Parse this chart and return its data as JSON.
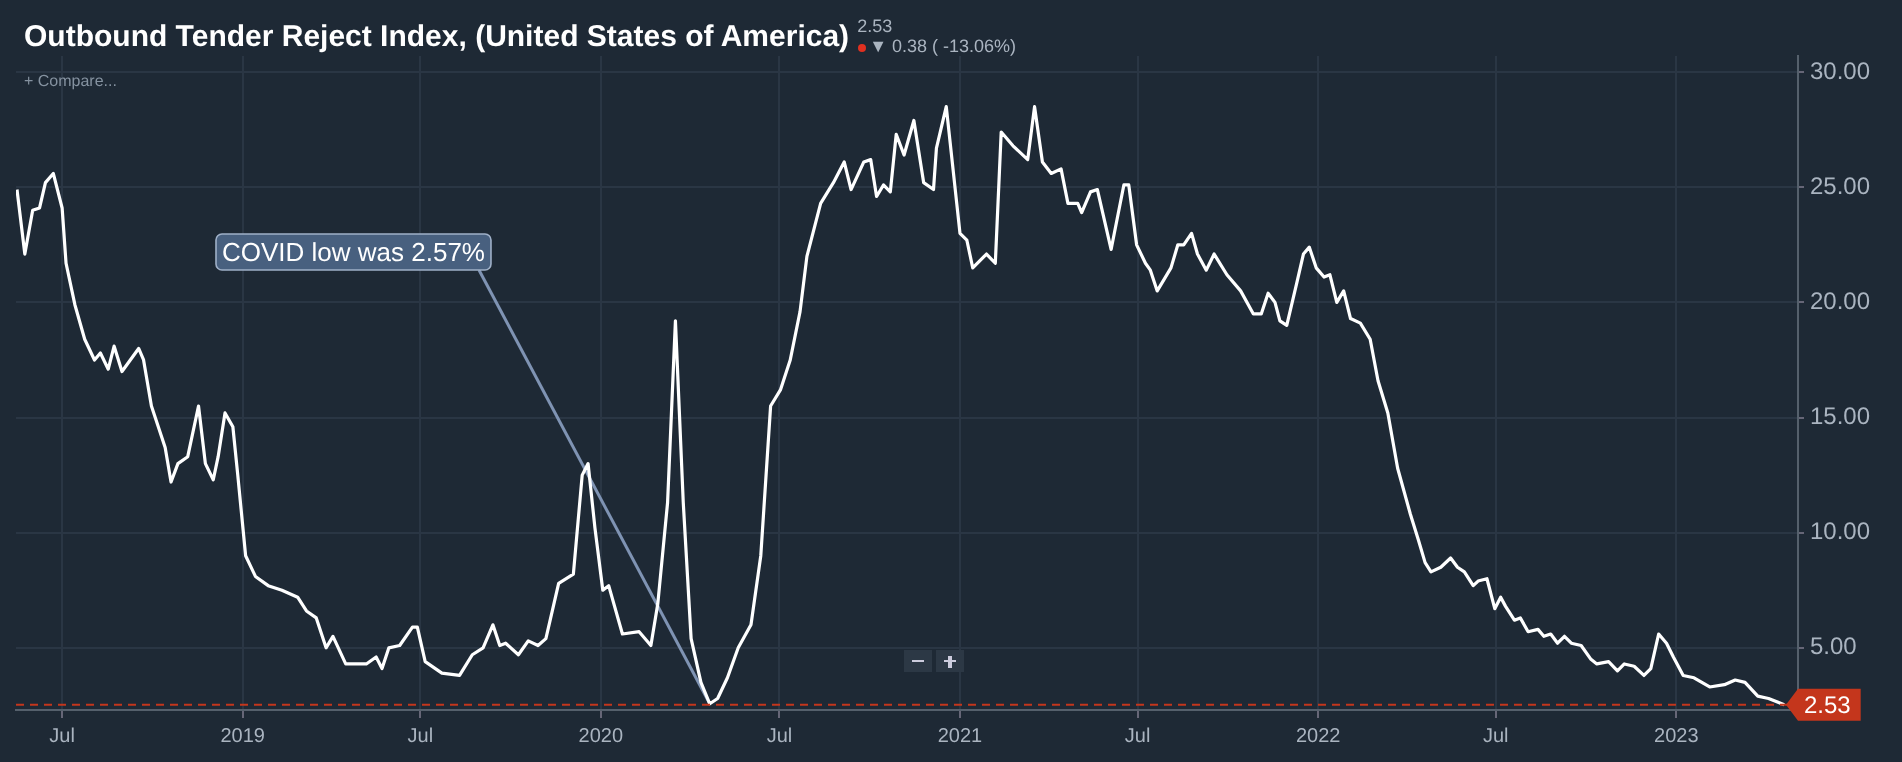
{
  "chart_data": {
    "type": "line",
    "title": "Outbound Tender Reject Index, (United States of America)",
    "subtitle": "2.53",
    "annotations": [
      "▼ 0.38 ( -13.06%)",
      "+ Compare...",
      {
        "text": "COVID low was 2.57%",
        "x": "2020-04-21",
        "y": 2.57
      }
    ],
    "x": [
      "2018-05-16",
      "2018-05-24",
      "2018-06-01",
      "2018-06-08",
      "2018-06-14",
      "2018-06-22",
      "2018-07-01",
      "2018-07-05",
      "2018-07-14",
      "2018-07-24",
      "2018-08-03",
      "2018-08-09",
      "2018-08-17",
      "2018-08-23",
      "2018-08-31",
      "2018-09-17",
      "2018-09-22",
      "2018-09-30",
      "2018-10-14",
      "2018-10-20",
      "2018-10-27",
      "2018-11-06",
      "2018-11-17",
      "2018-11-24",
      "2018-12-02",
      "2018-12-07",
      "2018-12-14",
      "2018-12-22",
      "2018-12-27",
      "2019-01-04",
      "2019-01-14",
      "2019-01-27",
      "2019-02-10",
      "2019-02-26",
      "2019-03-07",
      "2019-03-17",
      "2019-03-27",
      "2019-04-03",
      "2019-04-16",
      "2019-05-07",
      "2019-05-17",
      "2019-05-23",
      "2019-05-30",
      "2019-06-10",
      "2019-06-23",
      "2019-06-28",
      "2019-07-06",
      "2019-07-23",
      "2019-08-10",
      "2019-08-23",
      "2019-09-03",
      "2019-09-13",
      "2019-09-20",
      "2019-09-26",
      "2019-10-09",
      "2019-10-19",
      "2019-10-29",
      "2019-11-06",
      "2019-11-19",
      "2019-12-04",
      "2019-12-13",
      "2019-12-19",
      "2019-12-26",
      "2020-01-03",
      "2020-01-09",
      "2020-01-23",
      "2020-02-09",
      "2020-02-21",
      "2020-02-28",
      "2020-03-09",
      "2020-03-17",
      "2020-03-25",
      "2020-04-02",
      "2020-04-12",
      "2020-04-21",
      "2020-04-29",
      "2020-05-09",
      "2020-05-20",
      "2020-06-02",
      "2020-06-12",
      "2020-06-22",
      "2020-07-02",
      "2020-07-12",
      "2020-07-22",
      "2020-07-29",
      "2020-08-12",
      "2020-08-25",
      "2020-09-05",
      "2020-09-12",
      "2020-09-25",
      "2020-10-02",
      "2020-10-08",
      "2020-10-15",
      "2020-10-22",
      "2020-10-28",
      "2020-11-05",
      "2020-11-15",
      "2020-11-25",
      "2020-12-05",
      "2020-12-08",
      "2020-12-18",
      "2021-01-01",
      "2021-01-08",
      "2021-01-14",
      "2021-01-28",
      "2021-02-06",
      "2021-02-12",
      "2021-02-24",
      "2021-03-11",
      "2021-03-18",
      "2021-03-26",
      "2021-04-04",
      "2021-04-14",
      "2021-04-21",
      "2021-05-01",
      "2021-05-05",
      "2021-05-14",
      "2021-05-21",
      "2021-06-04",
      "2021-06-17",
      "2021-06-22",
      "2021-06-30",
      "2021-07-09",
      "2021-07-14",
      "2021-07-21",
      "2021-08-04",
      "2021-08-11",
      "2021-08-17",
      "2021-08-25",
      "2021-08-31",
      "2021-09-09",
      "2021-09-17",
      "2021-09-30",
      "2021-10-14",
      "2021-10-27",
      "2021-11-04",
      "2021-11-11",
      "2021-11-18",
      "2021-11-23",
      "2021-11-30",
      "2021-12-10",
      "2021-12-17",
      "2021-12-23",
      "2021-12-30",
      "2022-01-07",
      "2022-01-13",
      "2022-01-20",
      "2022-01-27",
      "2022-02-03",
      "2022-02-13",
      "2022-02-23",
      "2022-03-03",
      "2022-03-13",
      "2022-03-23",
      "2022-04-05",
      "2022-04-13",
      "2022-04-20",
      "2022-04-26",
      "2022-05-06",
      "2022-05-16",
      "2022-05-23",
      "2022-05-30",
      "2022-06-08",
      "2022-06-13",
      "2022-06-22",
      "2022-06-30",
      "2022-07-06",
      "2022-07-11",
      "2022-07-20",
      "2022-07-26",
      "2022-08-03",
      "2022-08-13",
      "2022-08-19",
      "2022-08-26",
      "2022-09-02",
      "2022-09-09",
      "2022-09-16",
      "2022-09-26",
      "2022-10-06",
      "2022-10-12",
      "2022-10-24",
      "2022-11-02",
      "2022-11-09",
      "2022-11-19",
      "2022-11-29",
      "2022-12-06",
      "2022-12-14",
      "2022-12-22",
      "2022-12-29",
      "2023-01-08",
      "2023-01-19",
      "2023-02-04",
      "2023-02-19",
      "2023-03-02",
      "2023-03-12",
      "2023-03-25",
      "2023-04-05",
      "2023-04-21"
    ],
    "series": [
      {
        "color": "#ffffff",
        "values": [
          24.9,
          22.1,
          24.0,
          24.1,
          25.2,
          25.6,
          24.1,
          21.7,
          19.9,
          18.4,
          17.5,
          17.8,
          17.1,
          18.1,
          17.0,
          18.0,
          17.5,
          15.5,
          13.7,
          12.2,
          13.0,
          13.3,
          15.5,
          13.0,
          12.3,
          13.3,
          15.2,
          14.6,
          12.5,
          9.0,
          8.1,
          7.7,
          7.5,
          7.2,
          6.6,
          6.3,
          5.0,
          5.5,
          4.3,
          4.3,
          4.6,
          4.1,
          5.0,
          5.1,
          5.9,
          5.9,
          4.4,
          3.9,
          3.8,
          4.7,
          5.0,
          6.0,
          5.1,
          5.2,
          4.7,
          5.3,
          5.1,
          5.4,
          7.8,
          8.2,
          12.5,
          13.0,
          10.2,
          7.5,
          7.7,
          5.6,
          5.7,
          5.1,
          6.9,
          11.3,
          19.2,
          11.3,
          5.4,
          3.5,
          2.57,
          2.8,
          3.7,
          5.0,
          6.0,
          9.0,
          15.5,
          16.2,
          17.5,
          19.6,
          22.0,
          24.3,
          25.2,
          26.1,
          24.9,
          26.1,
          26.2,
          24.6,
          25.1,
          24.8,
          27.3,
          26.4,
          27.9,
          25.2,
          24.9,
          26.7,
          28.5,
          23.0,
          22.7,
          21.5,
          22.1,
          21.7,
          27.4,
          26.8,
          26.2,
          28.5,
          26.1,
          25.6,
          25.8,
          24.3,
          24.3,
          23.9,
          24.8,
          24.9,
          22.3,
          25.1,
          25.1,
          22.5,
          21.7,
          21.4,
          20.5,
          21.5,
          22.5,
          22.5,
          23.0,
          22.1,
          21.4,
          22.1,
          21.2,
          20.5,
          19.5,
          19.5,
          20.4,
          20.0,
          19.2,
          19.0,
          20.8,
          22.1,
          22.4,
          21.5,
          21.1,
          21.2,
          20.0,
          20.5,
          19.3,
          19.1,
          18.4,
          16.6,
          15.2,
          12.8,
          10.8,
          9.7,
          8.7,
          8.3,
          8.5,
          8.9,
          8.5,
          8.3,
          7.7,
          7.9,
          8.0,
          6.7,
          7.2,
          6.8,
          6.2,
          6.3,
          5.7,
          5.8,
          5.5,
          5.6,
          5.2,
          5.5,
          5.2,
          5.1,
          4.5,
          4.3,
          4.4,
          4.0,
          4.3,
          4.2,
          3.8,
          4.1,
          5.6,
          5.2,
          4.6,
          3.8,
          3.7,
          3.3,
          3.4,
          3.6,
          3.5,
          2.9,
          2.8,
          2.53
        ]
      }
    ],
    "xlim": [
      "2018-05-15",
      "2023-05-05"
    ],
    "xticks": [
      {
        "value": "2018-07-01",
        "label": "Jul"
      },
      {
        "value": "2019-01-01",
        "label": "2019"
      },
      {
        "value": "2019-07-01",
        "label": "Jul"
      },
      {
        "value": "2020-01-01",
        "label": "2020"
      },
      {
        "value": "2020-07-01",
        "label": "Jul"
      },
      {
        "value": "2021-01-01",
        "label": "2021"
      },
      {
        "value": "2021-07-01",
        "label": "Jul"
      },
      {
        "value": "2022-01-01",
        "label": "2022"
      },
      {
        "value": "2022-07-01",
        "label": "Jul"
      },
      {
        "value": "2023-01-01",
        "label": "2023"
      }
    ],
    "ylim": [
      2.3,
      30.7
    ],
    "yticks": [
      {
        "value": 5,
        "label": "5.00"
      },
      {
        "value": 10,
        "label": "10.00"
      },
      {
        "value": 15,
        "label": "15.00"
      },
      {
        "value": 20,
        "label": "20.00"
      },
      {
        "value": 25,
        "label": "25.00"
      },
      {
        "value": 30,
        "label": "30.00"
      }
    ],
    "ref_lines": [
      {
        "axis": "y",
        "value": 2.53,
        "label": "2.53",
        "color": "#c4361c",
        "line_style": "dashed"
      }
    ],
    "grid": true,
    "legend": false,
    "marker": "none",
    "line_style": "solid"
  }
}
